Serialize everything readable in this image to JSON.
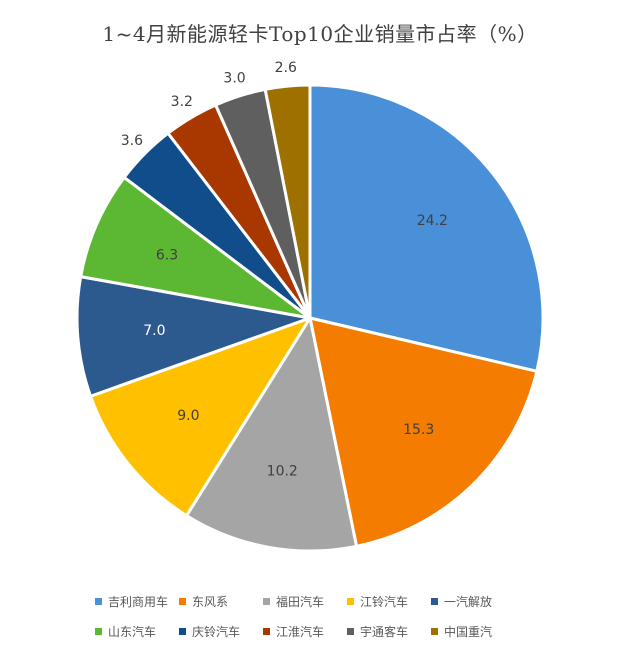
{
  "colors": {
    "吉利商用车": "#4a90d9",
    "东风系": "#f47c00",
    "福田汽车": "#a5a5a5",
    "江铃汽车": "#ffc000",
    "一汽解放": "#2d5a8e",
    "山东汽车": "#5cb832",
    "庆铃汽车": "#114d8a",
    "江淮汽车": "#a83800",
    "宇通客车": "#5f5f5f",
    "中国重汽": "#9d7000"
  },
  "chart_data": {
    "type": "pie",
    "title": "1~4月新能源轻卡Top10企业销量市占率（%）",
    "categories": [
      "吉利商用车",
      "东风系",
      "福田汽车",
      "江铃汽车",
      "一汽解放",
      "山东汽车",
      "庆铃汽车",
      "江淮汽车",
      "宇通客车",
      "中国重汽"
    ],
    "values": [
      24.2,
      15.3,
      10.2,
      9.0,
      7.0,
      6.3,
      3.6,
      3.2,
      3.0,
      2.6
    ],
    "labels": [
      "24.2",
      "15.3",
      "10.2",
      "9.0",
      "7.0",
      "6.3",
      "3.6",
      "3.2",
      "3.0",
      "2.6"
    ],
    "legend_position": "bottom"
  }
}
